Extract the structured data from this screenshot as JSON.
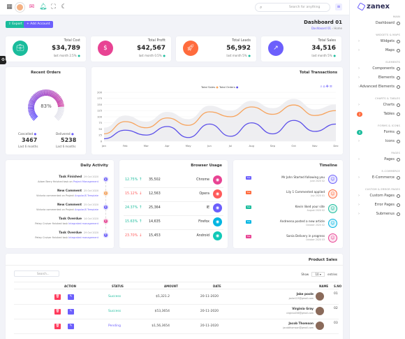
{
  "search": {
    "placeholder": "Search for anything"
  },
  "brand": {
    "name": "zanex"
  },
  "header": {
    "page_title": "Dashboard 01",
    "breadcrumb": [
      "Dashboard 01",
      "Home"
    ],
    "export_label": "Export",
    "add_account_label": "+ Add Account"
  },
  "stats": [
    {
      "label": "Total Cost",
      "value": "$34,789",
      "sub": "last month 2.5%",
      "color": "#1abc9c",
      "icon": "briefcase-icon"
    },
    {
      "label": "Total Profit",
      "value": "$42,567",
      "sub": "last month 0.5%",
      "color": "#e84393",
      "icon": "dollar-icon"
    },
    {
      "label": "Total Leads",
      "value": "56,992",
      "sub": "last month 5%",
      "color": "#ff6b3d",
      "icon": "rocket-icon"
    },
    {
      "label": "Total Sales",
      "value": "34,516",
      "sub": "last month 5%",
      "color": "#6c5ffc",
      "icon": "trend-icon"
    }
  ],
  "recent_orders": {
    "title": "Recent Orders",
    "percent": "83%",
    "percent_value": 83,
    "cancelled_label": "Cancelled",
    "cancelled_value": "3467",
    "cancelled_sub": "Last 6 months",
    "delivered_label": "Delivered",
    "delivered_value": "5238",
    "delivered_sub": "Last 6 months"
  },
  "transactions": {
    "title": "Total Transactions",
    "legend": [
      "Total Sales",
      "Total Orders"
    ]
  },
  "chart_data": {
    "type": "line",
    "title": "Total Transactions",
    "categories": [
      "Jan",
      "Feb",
      "Mar",
      "Apr",
      "May",
      "Jun",
      "Jul",
      "Aug",
      "Sep",
      "Oct",
      "Nov",
      "Dec"
    ],
    "ylim": [
      0,
      200
    ],
    "yticks": [
      0,
      25,
      50,
      75,
      100,
      125,
      150,
      175,
      200
    ],
    "series": [
      {
        "name": "Total Sales",
        "color": "#f7a35c",
        "values": [
          30,
          80,
          55,
          95,
          65,
          120,
          100,
          140,
          110,
          148,
          105,
          125
        ]
      },
      {
        "name": "Total Orders",
        "color": "#5b4fe9",
        "values": [
          10,
          45,
          25,
          60,
          15,
          70,
          20,
          75,
          30,
          85,
          40,
          70
        ]
      }
    ]
  },
  "daily_activity": {
    "title": "Daily Activity",
    "items": [
      {
        "title": "Task Finished",
        "date": "29 Oct 2020",
        "desc": "Adam Berry finished task on",
        "link": "Project Management",
        "color": "#6c5ffc"
      },
      {
        "title": "New Comment",
        "date": "25 Oct 2020",
        "desc": "Victoria commented on Project",
        "link": "AngularJS Template",
        "color": "#f7a35c"
      },
      {
        "title": "New Comment",
        "date": "25 Oct 2020",
        "desc": "Victoria commented on Project",
        "link": "AngularJS Template",
        "color": "#6c5ffc"
      },
      {
        "title": "Task Overdue",
        "date": "14 Oct 2020",
        "desc": "Petey Cruiser finished task",
        "link": "Integrated management",
        "color": "#e84393"
      },
      {
        "title": "Task Overdue",
        "date": "29 Oct 2020",
        "desc": "Petey Cruiser finished task",
        "link": "Integrated management",
        "color": "#6c5ffc"
      }
    ]
  },
  "browser_usage": {
    "title": "Browser Usage",
    "rows": [
      {
        "pct": "12.75%",
        "dir": "up",
        "value": "35,502",
        "name": "Chrome",
        "color": "#e84393"
      },
      {
        "pct": "15.12%",
        "dir": "down",
        "value": "12,563",
        "name": "Opera",
        "color": "#ff5b5b"
      },
      {
        "pct": "24.37%",
        "dir": "up",
        "value": "25,364",
        "name": "IE",
        "color": "#6c5ffc"
      },
      {
        "pct": "15.63%",
        "dir": "up",
        "value": "14,635",
        "name": "Firefox",
        "color": "#00b5e2"
      },
      {
        "pct": "23.70%",
        "dir": "down",
        "value": "15,453",
        "name": "Android",
        "color": "#12c9b8"
      }
    ]
  },
  "timeline": {
    "title": "Timeline",
    "items": [
      {
        "badge": "Tue",
        "text": "Mr John Started following you",
        "date": "June 2020 02",
        "color": "#6c5ffc"
      },
      {
        "badge": "Tue",
        "text": "Lily 1 Commented applied",
        "date": "July 2020 01",
        "color": "#ff6b3d"
      },
      {
        "badge": "Tue",
        "text": "Kevin liked your site",
        "date": "August 2020 02",
        "color": "#1abc9c"
      },
      {
        "badge": "Tue",
        "text": "Andreena posted a new article",
        "date": "October 2020 02",
        "color": "#00b5e2"
      },
      {
        "badge": "Tue",
        "text": "Sonia Delivery in progress",
        "date": "October 2020 03",
        "color": "#e84393"
      }
    ]
  },
  "product_sales": {
    "title": "Product Sales",
    "search_placeholder": "Search...",
    "show_label": "Show",
    "show_value": "10",
    "entries_label": "entries",
    "columns": [
      "ACTION",
      "STATUS",
      "AMOUNT",
      "DATE",
      "NAME",
      "S.NO"
    ],
    "rows": [
      {
        "status": "Success",
        "amount": "$5,321.2",
        "date": "20-11-2020",
        "name": "Jake poole",
        "email": "jacke123@gmail.com",
        "sno": "01",
        "status_color": "#1abc9c"
      },
      {
        "status": "Success",
        "amount": "$53,3654",
        "date": "20-11-2020",
        "name": "Virginia Gray",
        "email": "virginia456@gmail.com",
        "sno": "02",
        "status_color": "#1abc9c"
      },
      {
        "status": "Pending",
        "amount": "$1,56,3654",
        "date": "20-11-2020",
        "name": "Jacob Thomson",
        "email": "jacobthomson@gmail.com",
        "sno": "03",
        "status_color": "#6c5ffc"
      }
    ]
  },
  "sidebar": {
    "sections": [
      {
        "heading": "MAIN",
        "items": [
          {
            "label": "Dashboard"
          }
        ]
      },
      {
        "heading": "WIDGETS & MAPS",
        "items": [
          {
            "label": "Widgets"
          },
          {
            "label": "Maps"
          }
        ]
      },
      {
        "heading": "ELEMENTS",
        "items": [
          {
            "label": "Components"
          },
          {
            "label": "Elements"
          },
          {
            "label": "Advanced Elements"
          }
        ]
      },
      {
        "heading": "CHARTS & TABLES",
        "items": [
          {
            "label": "Charts"
          },
          {
            "label": "Tables",
            "badge": "2"
          }
        ]
      },
      {
        "heading": "FORMS & ICONS",
        "items": [
          {
            "label": "Forms",
            "badge": "4"
          },
          {
            "label": "Icons"
          }
        ]
      },
      {
        "heading": "PAGES",
        "items": [
          {
            "label": "Pages"
          }
        ]
      },
      {
        "heading": "E-COMMERCE",
        "items": [
          {
            "label": "E-Commerce"
          }
        ]
      },
      {
        "heading": "CUSTOM & ERROR PAGES",
        "items": [
          {
            "label": "Custom Pages"
          },
          {
            "label": "Error Pages"
          },
          {
            "label": "Submenus"
          }
        ]
      }
    ]
  }
}
